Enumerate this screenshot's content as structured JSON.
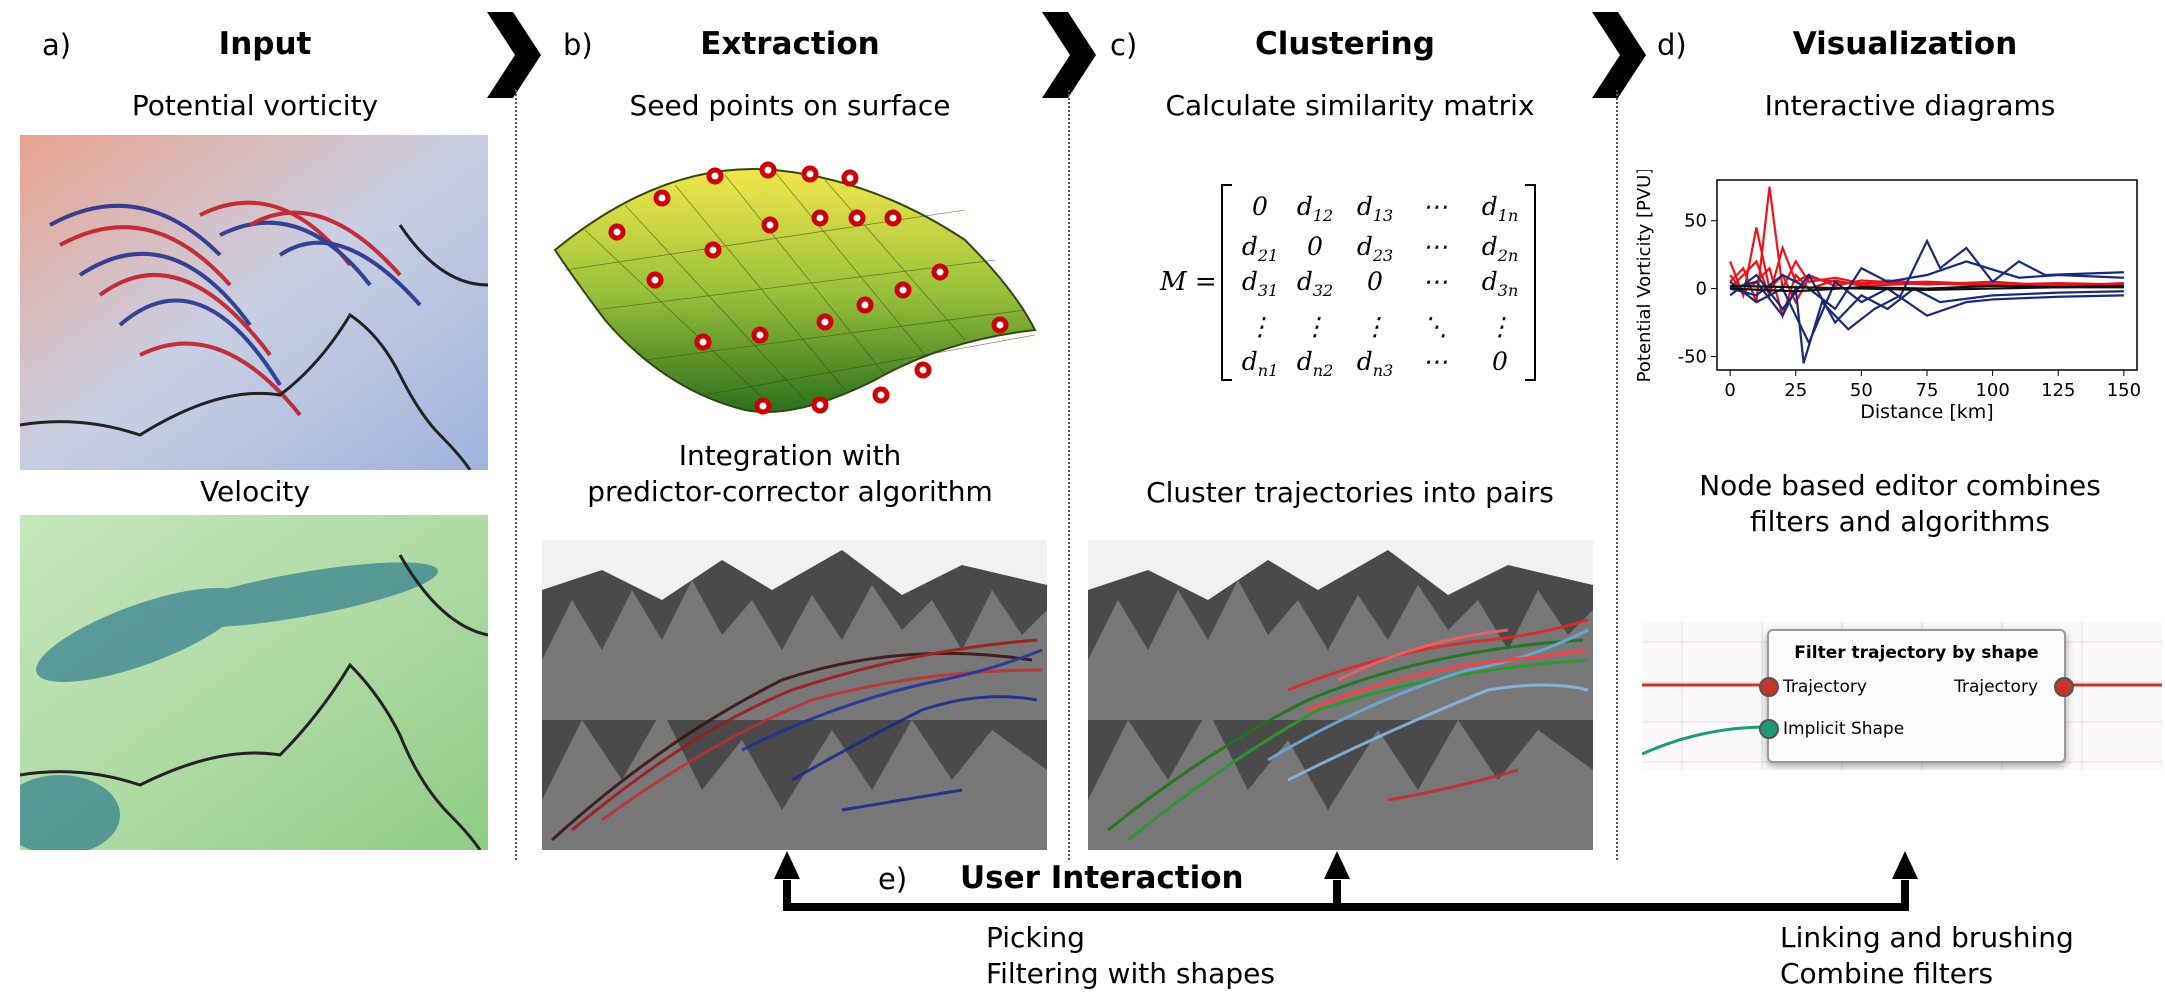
{
  "panels": [
    {
      "letter": "a)",
      "title": "Input",
      "subtitle": "Potential vorticity",
      "subtitle2": "Velocity"
    },
    {
      "letter": "b)",
      "title": "Extraction",
      "subtitle": "Seed points on surface",
      "caption_line1": "Integration with",
      "caption_line2": "predictor-corrector algorithm"
    },
    {
      "letter": "c)",
      "title": "Clustering",
      "subtitle": "Calculate similarity matrix",
      "caption": "Cluster trajectories into pairs"
    },
    {
      "letter": "d)",
      "title": "Visualization",
      "subtitle": "Interactive diagrams",
      "caption_line1": "Node based editor combines",
      "caption_line2": "filters and algorithms"
    }
  ],
  "matrix": {
    "lhs": "M =",
    "rows": [
      [
        "0",
        "d12",
        "d13",
        "⋯",
        "d1n"
      ],
      [
        "d21",
        "0",
        "d23",
        "⋯",
        "d2n"
      ],
      [
        "d31",
        "d32",
        "0",
        "⋯",
        "d3n"
      ],
      [
        "⋮",
        "⋮",
        "⋮",
        "⋱",
        "⋮"
      ],
      [
        "dn1",
        "dn2",
        "dn3",
        "⋯",
        "0"
      ]
    ]
  },
  "node_editor": {
    "title": "Filter trajectory by shape",
    "input1": "Trajectory",
    "input2": "Implicit Shape",
    "output1": "Trajectory"
  },
  "interaction": {
    "letter": "e)",
    "title": "User Interaction",
    "left_line1": "Picking",
    "left_line2": "Filtering with shapes",
    "right_line1": "Linking and brushing",
    "right_line2": "Combine filters"
  },
  "chart_data": {
    "type": "line",
    "xlabel": "Distance [km]",
    "ylabel": "Potential Vorticity [PVU]",
    "xlim": [
      -5,
      155
    ],
    "ylim": [
      -60,
      80
    ],
    "xticks": [
      0,
      25,
      50,
      75,
      100,
      125,
      150
    ],
    "yticks": [
      -50,
      0,
      50
    ],
    "colors": {
      "red": "#e8141c",
      "blue": "#1a2a7a",
      "black": "#111111"
    },
    "series": [
      {
        "color": "red",
        "x": [
          0,
          5,
          10,
          15,
          20,
          25,
          30,
          40,
          50,
          60,
          75,
          100,
          125,
          150
        ],
        "y": [
          20,
          -5,
          45,
          0,
          10,
          -10,
          8,
          5,
          3,
          6,
          4,
          3,
          2,
          2
        ]
      },
      {
        "color": "red",
        "x": [
          0,
          5,
          10,
          15,
          20,
          25,
          30,
          40,
          50,
          75,
          100,
          125,
          150
        ],
        "y": [
          5,
          15,
          -10,
          75,
          0,
          20,
          5,
          8,
          4,
          5,
          3,
          4,
          3
        ]
      },
      {
        "color": "red",
        "x": [
          0,
          5,
          10,
          15,
          20,
          25,
          30,
          40,
          50,
          75,
          100,
          125,
          150
        ],
        "y": [
          0,
          10,
          20,
          -5,
          30,
          5,
          10,
          2,
          6,
          3,
          5,
          2,
          4
        ]
      },
      {
        "color": "red",
        "x": [
          0,
          5,
          10,
          15,
          20,
          25,
          30,
          40,
          50,
          75,
          100,
          125,
          150
        ],
        "y": [
          10,
          -3,
          5,
          15,
          -20,
          10,
          0,
          6,
          2,
          4,
          2,
          3,
          1
        ]
      },
      {
        "color": "blue",
        "x": [
          0,
          10,
          20,
          25,
          28,
          35,
          45,
          55,
          65,
          75,
          80,
          90,
          100,
          110,
          120,
          150
        ],
        "y": [
          0,
          5,
          -20,
          0,
          -55,
          -10,
          -30,
          -15,
          -5,
          35,
          15,
          30,
          5,
          20,
          10,
          12
        ]
      },
      {
        "color": "blue",
        "x": [
          0,
          10,
          20,
          30,
          40,
          50,
          60,
          70,
          80,
          100,
          125,
          150
        ],
        "y": [
          -5,
          10,
          -15,
          10,
          -25,
          -5,
          -15,
          0,
          -10,
          -5,
          -3,
          -2
        ]
      },
      {
        "color": "blue",
        "x": [
          0,
          10,
          20,
          30,
          40,
          50,
          60,
          75,
          90,
          100,
          125,
          150
        ],
        "y": [
          5,
          -10,
          0,
          -40,
          5,
          -10,
          0,
          -20,
          -10,
          -8,
          -6,
          -5
        ]
      },
      {
        "color": "blue",
        "x": [
          0,
          10,
          20,
          30,
          40,
          50,
          60,
          75,
          90,
          110,
          125,
          150
        ],
        "y": [
          0,
          -5,
          10,
          0,
          -15,
          15,
          5,
          10,
          20,
          8,
          10,
          8
        ]
      },
      {
        "color": "black",
        "x": [
          0,
          25,
          50,
          75,
          100,
          125,
          150
        ],
        "y": [
          0,
          -2,
          1,
          0,
          2,
          1,
          2
        ]
      },
      {
        "color": "black",
        "x": [
          0,
          25,
          50,
          75,
          100,
          125,
          150
        ],
        "y": [
          2,
          1,
          0,
          -1,
          0,
          1,
          1
        ]
      }
    ]
  }
}
